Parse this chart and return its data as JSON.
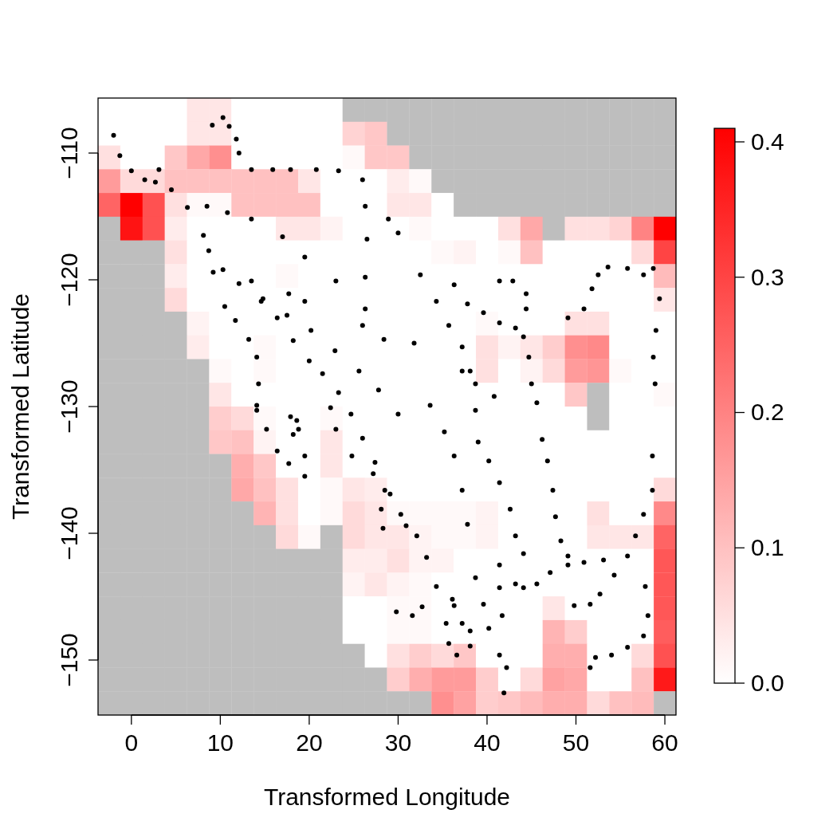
{
  "chart_data": [
    {
      "type": "heatmap",
      "categories": [
        null,
        null,
        null,
        null,
        null,
        null,
        null,
        null,
        null,
        null,
        null,
        null,
        null,
        null,
        null,
        null,
        null,
        null,
        null,
        null,
        null,
        null,
        null,
        null,
        null,
        null
      ],
      "y_categories": [
        null,
        null,
        null,
        null,
        null,
        null,
        null,
        null,
        null,
        null,
        null,
        null,
        null,
        null,
        null,
        null,
        null,
        null,
        null,
        null,
        null,
        null,
        null,
        null,
        null,
        null
      ],
      "clim": [
        0,
        0.41
      ],
      "cticks": [
        {
          "value": 0,
          "label": "0.0"
        },
        0.1,
        0.2,
        0.3,
        0.4
      ],
      "cells": [
        [
          0,
          0,
          0,
          0,
          0.04,
          0.04,
          0,
          0,
          0,
          0,
          0,
          null,
          null,
          null,
          null,
          null,
          null,
          null,
          null,
          null,
          null,
          null,
          null,
          null,
          null,
          null
        ],
        [
          0,
          0,
          0,
          0,
          0.04,
          0.04,
          0,
          0,
          0,
          0,
          0,
          0.07,
          0.09,
          null,
          null,
          null,
          null,
          null,
          null,
          null,
          null,
          null,
          null,
          null,
          null,
          null
        ],
        [
          0.05,
          0,
          0,
          0.09,
          0.14,
          0.18,
          0,
          0,
          0,
          0,
          0,
          0.01,
          0.09,
          0.09,
          null,
          null,
          null,
          null,
          null,
          null,
          null,
          null,
          null,
          null,
          null,
          null
        ],
        [
          0.16,
          0.06,
          0.06,
          0.1,
          0.1,
          0.1,
          0.1,
          0.1,
          0.1,
          0.04,
          0,
          0,
          0,
          0.03,
          0.01,
          null,
          null,
          null,
          null,
          null,
          null,
          null,
          null,
          null,
          null,
          null
        ],
        [
          0.25,
          0.41,
          0.28,
          0.05,
          0.01,
          0.01,
          0.1,
          0.1,
          0.1,
          0.1,
          0,
          0,
          0,
          0.04,
          0.04,
          0,
          null,
          null,
          null,
          null,
          null,
          null,
          null,
          null,
          null,
          null
        ],
        [
          null,
          0.38,
          0.28,
          0.03,
          0,
          0,
          0,
          0,
          0.04,
          0.04,
          0.02,
          0,
          0,
          0,
          0.01,
          0,
          0,
          0,
          0.05,
          0.14,
          null,
          0.05,
          0.05,
          0.07,
          0.2,
          0.41
        ],
        [
          null,
          null,
          null,
          0.05,
          0,
          0,
          0,
          0,
          0,
          0,
          0,
          0,
          0,
          0,
          0,
          0.01,
          0.02,
          0,
          0.01,
          0.1,
          0,
          0,
          0,
          0,
          0.06,
          0.3
        ],
        [
          null,
          null,
          null,
          0.03,
          0,
          0,
          0,
          0,
          0.01,
          0,
          0,
          0,
          0,
          0,
          0,
          0,
          0,
          0,
          0,
          0,
          0,
          0,
          0,
          0,
          0,
          0.11
        ],
        [
          null,
          null,
          null,
          0.06,
          0,
          0,
          0,
          0,
          0,
          0,
          0,
          0,
          0,
          0,
          0,
          0,
          0,
          0,
          0,
          0,
          0,
          0,
          0,
          0,
          0,
          0.04
        ],
        [
          null,
          null,
          null,
          null,
          0.02,
          0,
          0,
          0,
          0,
          0,
          0,
          0,
          0,
          0,
          0,
          0,
          0,
          0.01,
          0,
          0,
          0,
          0.05,
          0.05,
          0,
          0,
          0
        ],
        [
          null,
          null,
          null,
          null,
          0.03,
          0,
          0,
          0.01,
          0,
          0,
          0,
          0,
          0,
          0,
          0,
          0,
          0,
          0.05,
          0.02,
          0.04,
          0.08,
          0.18,
          0.19,
          0,
          0,
          0
        ],
        [
          null,
          null,
          null,
          null,
          null,
          0.01,
          0,
          0.01,
          0,
          0,
          0,
          0,
          0,
          0,
          0,
          0,
          0,
          0.05,
          0,
          0.02,
          0.06,
          0.16,
          0.17,
          0.01,
          0,
          0
        ],
        [
          null,
          null,
          null,
          null,
          null,
          0.04,
          0,
          0,
          0,
          0,
          0,
          0,
          0,
          0,
          0,
          0,
          0,
          0,
          0,
          0,
          0,
          0.09,
          null,
          0,
          0,
          0.01
        ],
        [
          null,
          null,
          null,
          null,
          null,
          0.08,
          0.06,
          0.01,
          0,
          0,
          0.01,
          0,
          0,
          0,
          0,
          0,
          0,
          0,
          0,
          0,
          0,
          0,
          null,
          0,
          0,
          0
        ],
        [
          null,
          null,
          null,
          null,
          null,
          0.09,
          0.1,
          0.02,
          0,
          0,
          0.04,
          0,
          0,
          0,
          0,
          0,
          0,
          0,
          0,
          0,
          0,
          0,
          0,
          0,
          0,
          0
        ],
        [
          null,
          null,
          null,
          null,
          null,
          null,
          0.13,
          0.09,
          0,
          0,
          0.04,
          0,
          0,
          0,
          0,
          0,
          0,
          0,
          0,
          0,
          0,
          0,
          0,
          0,
          0,
          0
        ],
        [
          null,
          null,
          null,
          null,
          null,
          null,
          0.14,
          0.1,
          0.05,
          0,
          0.01,
          0.04,
          0.03,
          0,
          0,
          0,
          0,
          0,
          0,
          0,
          0,
          0,
          0,
          0,
          0,
          0.06
        ],
        [
          null,
          null,
          null,
          null,
          null,
          null,
          null,
          0.12,
          0.05,
          0,
          0.01,
          0.06,
          0.04,
          0.01,
          0.01,
          0.01,
          0.01,
          0.02,
          0,
          0,
          0,
          0,
          0.05,
          0,
          0,
          0.19
        ],
        [
          null,
          null,
          null,
          null,
          null,
          null,
          null,
          null,
          0.06,
          0.01,
          null,
          0.06,
          0.04,
          0.04,
          0.02,
          0.01,
          0.01,
          0.02,
          0,
          0,
          0,
          0,
          0.04,
          0.04,
          0.04,
          0.25
        ],
        [
          null,
          null,
          null,
          null,
          null,
          null,
          null,
          null,
          null,
          null,
          null,
          0.03,
          0.03,
          0.05,
          0.02,
          0.02,
          0,
          0,
          0,
          0,
          0,
          0,
          0,
          0,
          0,
          0.27
        ],
        [
          null,
          null,
          null,
          null,
          null,
          null,
          null,
          null,
          null,
          null,
          null,
          0.02,
          0.04,
          0.02,
          0.01,
          0,
          0,
          0,
          0,
          0,
          0,
          0,
          0,
          0,
          0,
          0.27
        ],
        [
          null,
          null,
          null,
          null,
          null,
          null,
          null,
          null,
          null,
          null,
          null,
          0,
          0,
          0.01,
          0.01,
          0,
          0,
          0,
          0,
          0,
          0.04,
          0,
          0,
          0,
          0,
          0.27
        ],
        [
          null,
          null,
          null,
          null,
          null,
          null,
          null,
          null,
          null,
          null,
          null,
          0,
          0,
          0.01,
          0.01,
          0,
          0,
          0,
          0,
          0,
          0.12,
          0.08,
          0,
          0,
          0,
          0.26
        ],
        [
          null,
          null,
          null,
          null,
          null,
          null,
          null,
          null,
          null,
          null,
          null,
          null,
          0,
          0.05,
          0.08,
          0.06,
          0.09,
          0,
          0,
          0,
          0.13,
          0.13,
          0,
          0,
          0.06,
          0.28
        ],
        [
          null,
          null,
          null,
          null,
          null,
          null,
          null,
          null,
          null,
          null,
          null,
          null,
          null,
          0.08,
          0.13,
          0.16,
          0.16,
          0.08,
          0,
          0.06,
          0.15,
          0.14,
          0,
          0,
          0.1,
          0.37
        ],
        [
          null,
          null,
          null,
          null,
          null,
          null,
          null,
          null,
          null,
          null,
          null,
          null,
          null,
          null,
          null,
          0.18,
          0.15,
          0.08,
          0.09,
          0.11,
          0.13,
          0.13,
          0.06,
          0.1,
          0.11,
          null
        ]
      ]
    },
    {
      "type": "scatter",
      "xlabel": "Transformed Longitude",
      "ylabel": "Transformed Latitude",
      "marker": "circle",
      "xlim": [
        -3.75,
        61.25
      ],
      "ylim": [
        -154.34,
        -105.66
      ],
      "xticks": [
        0,
        10,
        20,
        30,
        40,
        50,
        60
      ],
      "yticks": [
        {
          "value": -110,
          "label": "−110"
        },
        {
          "value": -120,
          "label": "−120"
        },
        {
          "value": -130,
          "label": "−130"
        },
        {
          "value": -140,
          "label": "−140"
        },
        {
          "value": -150,
          "label": "−150"
        }
      ],
      "series": [
        {
          "color": "#000000",
          "x": [
            -2.0,
            -1.3,
            0,
            1.5,
            2.7,
            3.1,
            9.1,
            10.3,
            11.0,
            11.8,
            12.1,
            13.5,
            15.9,
            17.9,
            20.8,
            23.3,
            26.0,
            26.3,
            26.5,
            26.3,
            26.0,
            4.5,
            6.3,
            8.1,
            8.7,
            10.3,
            12.1,
            14.8,
            17.5,
            20.2,
            22.9,
            25.6,
            27.8,
            30.0,
            8.5,
            10.8,
            13.5,
            17.0,
            19.5,
            23.0,
            26.3,
            28.4,
            31.8,
            37.2,
            9.2,
            13.5,
            17.7,
            19.5,
            10.5,
            11.7,
            13.2,
            14.1,
            14.3,
            14.1,
            14.6,
            16.4,
            18.2,
            20.0,
            21.5,
            23.3,
            24.7,
            26.0,
            27.4,
            29.1,
            30.9,
            33.2,
            36.3,
            38.1,
            41.4,
            42.9,
            44.4,
            44.4,
            44.1,
            44.7,
            45.0,
            45.6,
            46.2,
            46.8,
            47.4,
            47.7,
            48.3,
            49.1,
            36.3,
            37.8,
            39.6,
            41.4,
            43.2,
            49.1,
            50.9,
            51.8,
            52.5,
            53.6,
            55.8,
            57.6,
            58.7,
            59.4,
            59.0,
            58.7,
            58.9,
            58.6,
            58.6,
            57.6,
            56.7,
            55.8,
            54.3,
            52.7,
            51.6,
            49.8,
            57.8,
            58.1,
            57.6,
            55.8,
            54.0,
            52.2,
            51.6,
            28.9,
            30.0,
            32.5,
            34.3,
            35.7,
            37.2,
            38.1,
            38.7,
            40.8,
            38.7,
            39.0,
            40.2,
            41.4,
            42.6,
            43.2,
            44.1,
            33.6,
            35.2,
            36.3,
            37.2,
            37.8,
            38.7,
            39.6,
            40.2,
            41.4,
            42.2,
            41.9,
            53.1,
            50.9,
            49.1,
            47.1,
            45.6,
            44.1,
            43.2,
            41.4,
            41.4,
            41.7,
            28.5,
            30.3,
            32.1,
            29.8,
            31.6,
            32.7,
            34.3,
            36.1,
            37.2,
            38.1,
            35.4,
            35.7,
            36.6,
            17.9,
            18.6,
            18.8,
            18.2,
            19.5,
            19.5,
            17.7,
            16.4,
            15.2,
            14.1,
            22.4,
            23.0,
            24.8,
            27.2,
            28.1,
            28.3
          ],
          "values": [
            -108.6,
            -110.2,
            -111.4,
            -112.1,
            -112.3,
            -111.3,
            -107.8,
            -107.2,
            -107.9,
            -108.9,
            -110.0,
            -111.3,
            -111.3,
            -111.3,
            -111.3,
            -111.4,
            -112.1,
            -114.2,
            -116.8,
            -119.8,
            -123.6,
            -112.9,
            -114.3,
            -116.5,
            -117.7,
            -119.2,
            -120.3,
            -121.5,
            -122.8,
            -124.0,
            -125.6,
            -127.2,
            -128.7,
            -130.6,
            -114.2,
            -114.7,
            -115.2,
            -116.6,
            -118.2,
            -120.1,
            -122.3,
            -124.7,
            -125.0,
            -127.2,
            -119.4,
            -120.1,
            -121.1,
            -121.7,
            -122.1,
            -123.2,
            -124.7,
            -126.1,
            -128.2,
            -129.9,
            -121.7,
            -123.0,
            -124.8,
            -126.4,
            -127.4,
            -128.9,
            -130.6,
            -132.5,
            -134.4,
            -136.9,
            -139.4,
            -141.9,
            -145.7,
            -148.9,
            -120.1,
            -120.1,
            -121.1,
            -122.3,
            -124.5,
            -126.1,
            -128.2,
            -129.7,
            -132.6,
            -134.3,
            -136.6,
            -138.7,
            -140.6,
            -141.8,
            -120.4,
            -121.9,
            -122.6,
            -123.4,
            -123.8,
            -123.0,
            -122.3,
            -120.7,
            -119.6,
            -119.0,
            -119.1,
            -119.6,
            -119.1,
            -121.5,
            -124.0,
            -126.1,
            -128.2,
            -133.9,
            -136.6,
            -138.5,
            -140.2,
            -141.8,
            -143.3,
            -144.8,
            -145.6,
            -145.7,
            -144.2,
            -146.5,
            -148.1,
            -149.0,
            -149.6,
            -149.8,
            -150.6,
            -115.2,
            -116.3,
            -119.6,
            -121.7,
            -123.6,
            -125.3,
            -127.2,
            -128.2,
            -129.2,
            -130.3,
            -132.8,
            -134.3,
            -136.0,
            -138.1,
            -140.2,
            -141.6,
            -129.9,
            -132.0,
            -133.9,
            -136.6,
            -139.3,
            -143.5,
            -145.6,
            -147.5,
            -149.6,
            -150.6,
            -152.6,
            -142.1,
            -142.3,
            -142.5,
            -143.1,
            -144.0,
            -144.3,
            -144.0,
            -142.5,
            -144.3,
            -146.5,
            -136.6,
            -138.5,
            -140.2,
            -146.2,
            -146.5,
            -145.8,
            -144.2,
            -145.2,
            -147.1,
            -147.7,
            -147.1,
            -148.7,
            -149.6,
            -130.8,
            -131.1,
            -131.8,
            -132.2,
            -133.9,
            -135.5,
            -134.5,
            -133.5,
            -131.8,
            -130.3,
            -130.1,
            -131.8,
            -133.9,
            -135.3,
            -138.1,
            -139.6
          ]
        }
      ]
    }
  ]
}
